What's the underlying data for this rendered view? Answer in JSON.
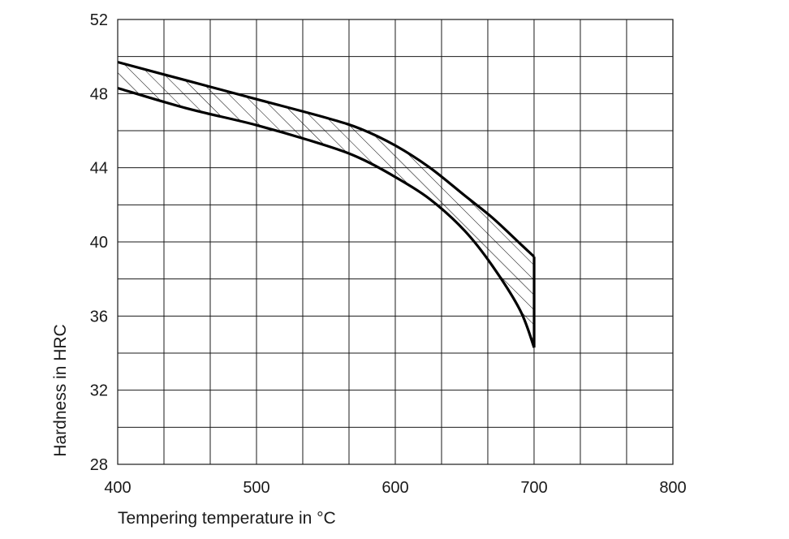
{
  "chart_data": {
    "type": "area",
    "title": "",
    "xlabel": "Tempering temperature in °C",
    "ylabel": "Hardness in HRC",
    "xlim": [
      400,
      800
    ],
    "ylim": [
      28,
      52
    ],
    "x_ticks": [
      400,
      500,
      600,
      700,
      800
    ],
    "y_ticks": [
      28,
      32,
      36,
      40,
      44,
      48,
      52
    ],
    "x_grid_step": 33.33,
    "y_grid_step": 2,
    "grid": true,
    "legend": "none",
    "fill_pattern": "diagonal-hatch",
    "line_color": "#000000",
    "series": [
      {
        "x": [
          400,
          450,
          500,
          550,
          575,
          600,
          625,
          650,
          670,
          690,
          700
        ],
        "values": [
          49.7,
          48.7,
          47.7,
          46.7,
          46.1,
          45.2,
          44.0,
          42.5,
          41.3,
          39.9,
          39.2
        ]
      },
      {
        "x": [
          400,
          450,
          500,
          550,
          575,
          600,
          625,
          650,
          670,
          690,
          700
        ],
        "values": [
          48.3,
          47.2,
          46.3,
          45.2,
          44.5,
          43.5,
          42.3,
          40.6,
          38.7,
          36.3,
          34.3
        ]
      }
    ]
  }
}
